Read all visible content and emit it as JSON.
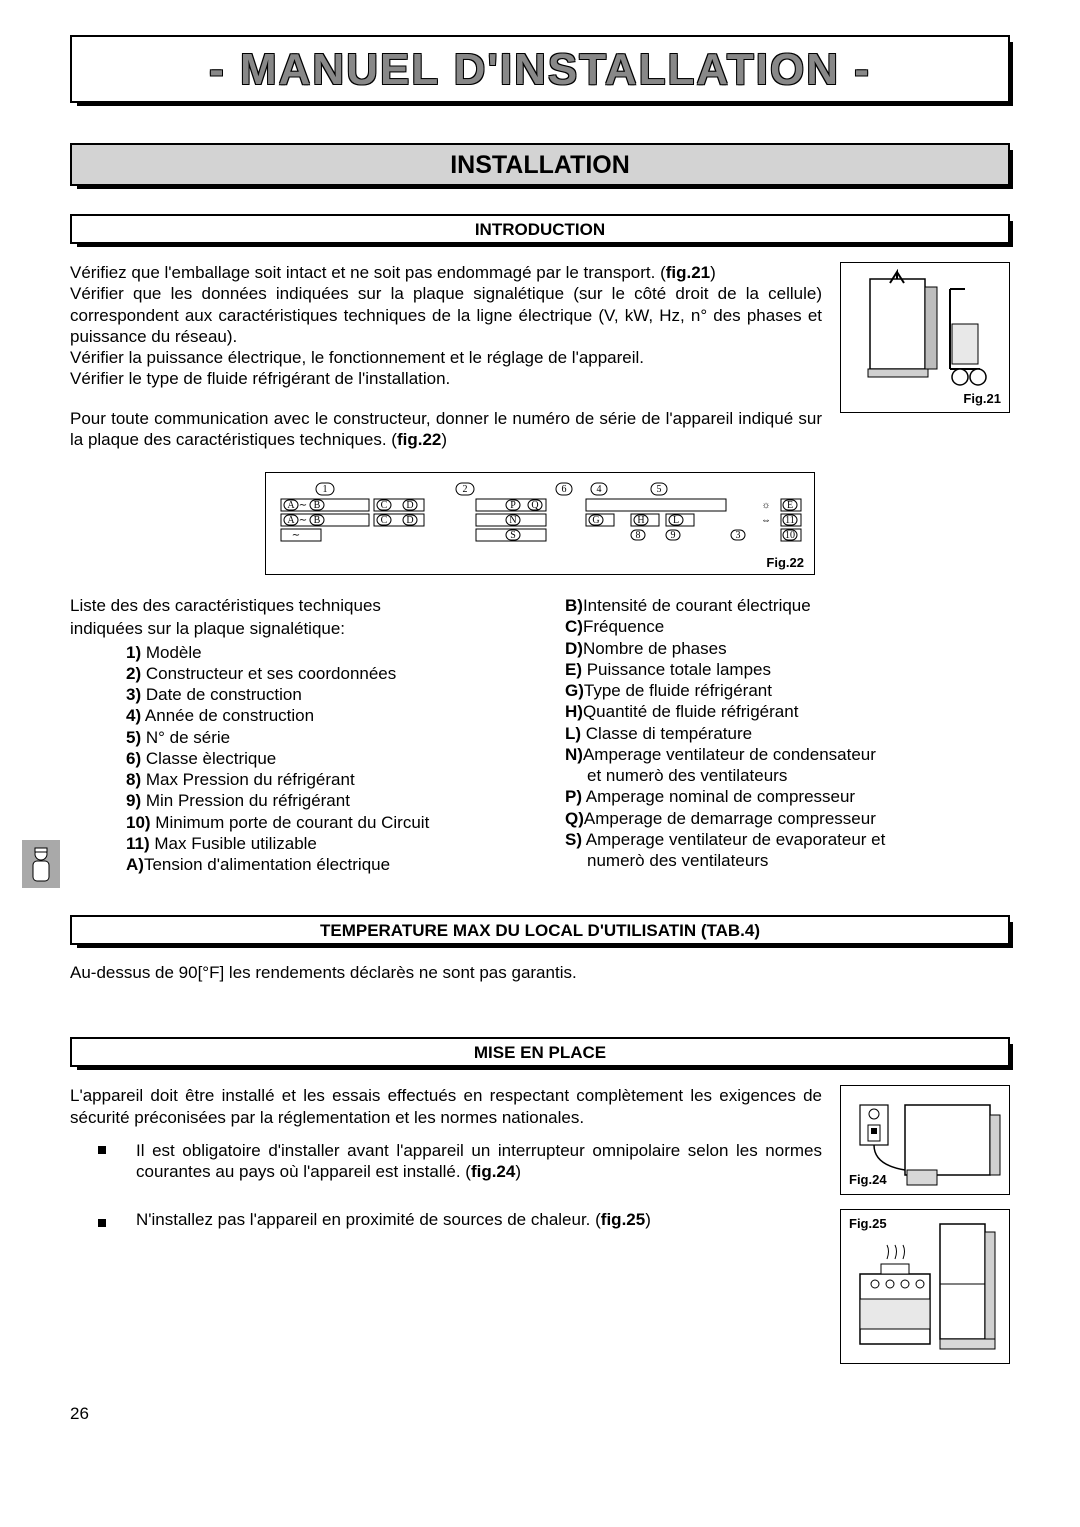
{
  "doc_title": "- MANUEL D'INSTALLATION -",
  "section": {
    "title": "INSTALLATION"
  },
  "introduction": {
    "heading": "INTRODUCTION",
    "p1a": "Vérifiez que l'emballage soit intact et ne soit pas endommagé par le transport. (",
    "p1b": "fig.21",
    "p1c": ")",
    "p2": "Vérifier que les données indiquées sur la plaque signalétique (sur le côté droit de la cellule) correspondent aux caractéristiques techniques de la ligne électrique  (V, kW, Hz,  n° des phases et puissance du réseau).",
    "p3": "Vérifier la puissance électrique, le fonctionnement et le réglage de l'appareil.",
    "p4": "Vérifier le type de fluide réfrigérant de l'installation.",
    "p5a": "Pour toute communication avec le constructeur,  donner le numéro de série de l'appareil indiqué sur la plaque des caractéristiques techniques. (",
    "p5b": "fig.22",
    "p5c": ")",
    "fig21_caption": "Fig.21",
    "fig22_caption": "Fig.22"
  },
  "specs": {
    "intro1": "Liste des des caractéristiques techniques",
    "intro2": "indiquées sur la plaque signalétique:",
    "left": [
      {
        "k": "1)",
        "v": " Modèle"
      },
      {
        "k": "2)",
        "v": " Constructeur et ses coordonnées"
      },
      {
        "k": "3)",
        "v": " Date de construction"
      },
      {
        "k": "4)",
        "v": " Année de construction"
      },
      {
        "k": "5)",
        "v": " N° de série"
      },
      {
        "k": "6)",
        "v": " Classe èlectrique"
      },
      {
        "k": "8)",
        "v": " Max Pression du réfrigérant"
      },
      {
        "k": "9)",
        "v": " Min Pression du réfrigérant"
      },
      {
        "k": "10)",
        "v": " Minimum porte de courant du Circuit"
      },
      {
        "k": "11)",
        "v": " Max Fusible utilizable"
      },
      {
        "k": "A)",
        "v": "Tension d'alimentation électrique"
      }
    ],
    "right": [
      {
        "k": "B)",
        "v": "Intensité de courant électrique"
      },
      {
        "k": "C)",
        "v": "Fréquence"
      },
      {
        "k": "D)",
        "v": "Nombre de phases"
      },
      {
        "k": "E)",
        "v": " Puissance totale lampes"
      },
      {
        "k": "G)",
        "v": "Type de fluide réfrigérant"
      },
      {
        "k": "H)",
        "v": "Quantité de fluide réfrigérant"
      },
      {
        "k": "L)",
        "v": " Classe di température"
      },
      {
        "k": "N)",
        "v": "Amperage ventilateur de condensateur",
        "cont": "et numerò des ventilateurs"
      },
      {
        "k": "P)",
        "v": " Amperage nominal de compresseur"
      },
      {
        "k": "Q)",
        "v": "Amperage de demarrage compresseur"
      },
      {
        "k": "S)",
        "v": " Amperage ventilateur de evaporateur et",
        "cont": "numerò des ventilateurs"
      }
    ]
  },
  "temperature": {
    "heading": "TEMPERATURE MAX DU LOCAL D'UTILISATIN (TAB.4)",
    "text": "Au-dessus de 90[°F] les rendements déclarès ne sont pas garantis."
  },
  "mise": {
    "heading": "MISE EN PLACE",
    "p1": "L'appareil doit être installé et les essais effectués en respectant complètement les exigences de sécurité préconisées par la réglementation et  les normes nationales.",
    "b1a": "Il est obligatoire d'installer avant l'appareil un interrupteur omnipolaire selon les normes courantes au pays où l'appareil est installé. (",
    "b1b": "fig.24",
    "b1c": ")",
    "b2a": "N'installez pas l'appareil en proximité de sources de chaleur. (",
    "b2b": "fig.25",
    "b2c": ")",
    "fig24_caption": "Fig.24",
    "fig25_caption": "Fig.25"
  },
  "page_number": "26"
}
